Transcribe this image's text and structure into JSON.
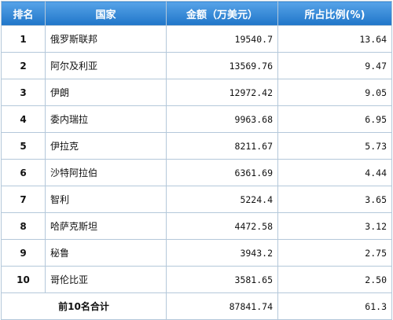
{
  "table": {
    "headers": {
      "rank": "排名",
      "country": "国家",
      "amount": "金额（万美元）",
      "share": "所占比例(%)"
    },
    "rows": [
      {
        "rank": "1",
        "country": "俄罗斯联邦",
        "amount": "19540.7",
        "share": "13.64"
      },
      {
        "rank": "2",
        "country": "阿尔及利亚",
        "amount": "13569.76",
        "share": "9.47"
      },
      {
        "rank": "3",
        "country": "伊朗",
        "amount": "12972.42",
        "share": "9.05"
      },
      {
        "rank": "4",
        "country": "委内瑞拉",
        "amount": "9963.68",
        "share": "6.95"
      },
      {
        "rank": "5",
        "country": "伊拉克",
        "amount": "8211.67",
        "share": "5.73"
      },
      {
        "rank": "6",
        "country": "沙特阿拉伯",
        "amount": "6361.69",
        "share": "4.44"
      },
      {
        "rank": "7",
        "country": "智利",
        "amount": "5224.4",
        "share": "3.65"
      },
      {
        "rank": "8",
        "country": "哈萨克斯坦",
        "amount": "4472.58",
        "share": "3.12"
      },
      {
        "rank": "9",
        "country": "秘鲁",
        "amount": "3943.2",
        "share": "2.75"
      },
      {
        "rank": "10",
        "country": "哥伦比亚",
        "amount": "3581.65",
        "share": "2.50"
      }
    ],
    "total": {
      "label": "前10名合计",
      "amount": "87841.74",
      "share": "61.3"
    }
  },
  "colors": {
    "header_bg": "#2f86d6",
    "border": "#b4c8da"
  }
}
